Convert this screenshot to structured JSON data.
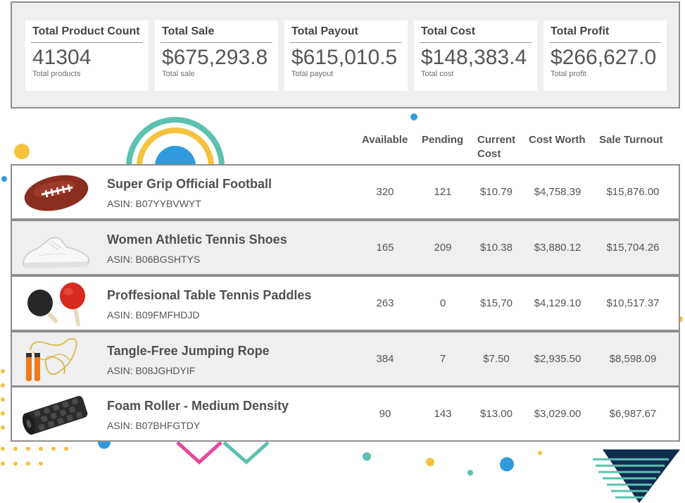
{
  "stats": [
    {
      "title": "Total Product Count",
      "value": "41304",
      "sub": "Total products"
    },
    {
      "title": "Total Sale",
      "value": "$675,293.8",
      "sub": "Total sale"
    },
    {
      "title": "Total Payout",
      "value": "$615,010.5",
      "sub": "Total payout"
    },
    {
      "title": "Total Cost",
      "value": "$148,383.4",
      "sub": "Total cost"
    },
    {
      "title": "Total Profit",
      "value": "$266,627.0",
      "sub": "Total profit"
    }
  ],
  "columns": {
    "available": "Available",
    "pending": "Pending",
    "current_cost_line1": "Current",
    "current_cost_line2": "Cost",
    "cost_worth": "Cost Worth",
    "sale_turnout": "Sale Turnout"
  },
  "products": [
    {
      "name": "Super Grip Official Football",
      "asin": "ASIN: B07YYBVWYT",
      "available": "320",
      "pending": "121",
      "current_cost": "$10.79",
      "cost_worth": "$4,758.39",
      "sale_turnout": "$15,876.00",
      "image_icon": "football-icon"
    },
    {
      "name": "Women Athletic Tennis Shoes",
      "asin": "ASIN: B06BGSHTYS",
      "available": "165",
      "pending": "209",
      "current_cost": "$10.38",
      "cost_worth": "$3,880.12",
      "sale_turnout": "$15,704.26",
      "image_icon": "sneaker-icon"
    },
    {
      "name": "Proffesional Table Tennis Paddles",
      "asin": "ASIN: B09FMFHDJD",
      "available": "263",
      "pending": "0",
      "current_cost": "$15,70",
      "cost_worth": "$4,129.10",
      "sale_turnout": "$10,517.37",
      "image_icon": "ping-pong-paddles-icon"
    },
    {
      "name": "Tangle-Free Jumping Rope",
      "asin": "ASIN: B08JGHDYIF",
      "available": "384",
      "pending": "7",
      "current_cost": "$7.50",
      "cost_worth": "$2,935.50",
      "sale_turnout": "$8,598.09",
      "image_icon": "jump-rope-icon"
    },
    {
      "name": "Foam Roller - Medium Density",
      "asin": "ASIN: B07BHFGTDY",
      "available": "90",
      "pending": "143",
      "current_cost": "$13.00",
      "cost_worth": "$3,029.00",
      "sale_turnout": "$6,987.67",
      "image_icon": "foam-roller-icon"
    }
  ],
  "colors": {
    "panel_bg": "#efefef",
    "border": "#8f8f8f",
    "accent_teal": "#5cc1b0",
    "accent_yellow": "#f6c23e",
    "accent_blue": "#2f9bdc",
    "accent_pink": "#e8469a",
    "accent_navy": "#0f2d4f"
  }
}
